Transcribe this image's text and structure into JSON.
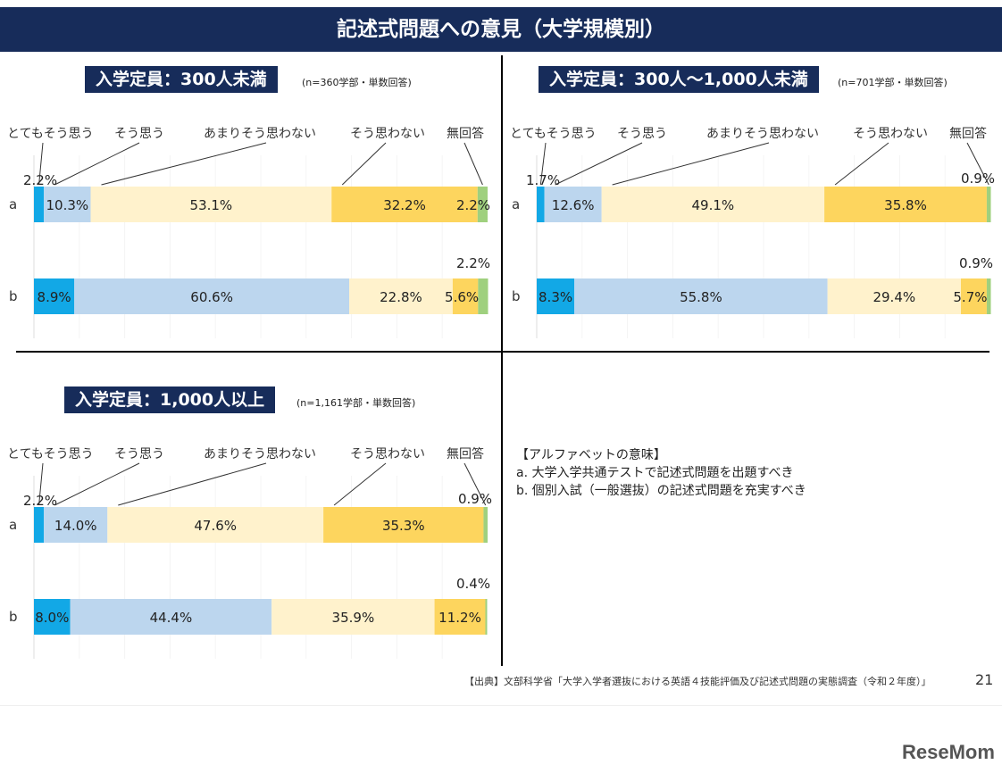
{
  "title": "記述式問題への意見（大学規模別）",
  "legend_colors": {
    "totemo": "#12a8e6",
    "sou": "#bcd6ee",
    "amari": "#fff2cc",
    "souomowanai": "#fdd55e",
    "muka": "#9fd07e"
  },
  "chart_data": [
    {
      "type": "bar",
      "title": "入学定員：300人未満",
      "note": "(n=360学部・単数回答)",
      "categories_header": [
        "とてもそう思う",
        "そう思う",
        "あまりそう思わない",
        "そう思わない",
        "無回答"
      ],
      "rows": [
        "a",
        "b"
      ],
      "series": [
        {
          "name": "とてもそう思う",
          "values": [
            2.2,
            8.9
          ]
        },
        {
          "name": "そう思う",
          "values": [
            10.3,
            60.6
          ]
        },
        {
          "name": "あまりそう思わない",
          "values": [
            53.1,
            22.8
          ]
        },
        {
          "name": "そう思わない",
          "values": [
            32.2,
            5.6
          ]
        },
        {
          "name": "無回答",
          "values": [
            2.2,
            2.2
          ]
        }
      ],
      "labels": [
        [
          "2.2%",
          "10.3%",
          "53.1%",
          "32.2%",
          "2.2%"
        ],
        [
          "8.9%",
          "60.6%",
          "22.8%",
          "5.6%",
          "2.2%"
        ]
      ]
    },
    {
      "type": "bar",
      "title": "入学定員：300人～1,000人未満",
      "note": "(n=701学部・単数回答)",
      "categories_header": [
        "とてもそう思う",
        "そう思う",
        "あまりそう思わない",
        "そう思わない",
        "無回答"
      ],
      "rows": [
        "a",
        "b"
      ],
      "series": [
        {
          "name": "とてもそう思う",
          "values": [
            1.7,
            8.3
          ]
        },
        {
          "name": "そう思う",
          "values": [
            12.6,
            55.8
          ]
        },
        {
          "name": "あまりそう思わない",
          "values": [
            49.1,
            29.4
          ]
        },
        {
          "name": "そう思わない",
          "values": [
            35.8,
            5.7
          ]
        },
        {
          "name": "無回答",
          "values": [
            0.9,
            0.9
          ]
        }
      ],
      "labels": [
        [
          "1.7%",
          "12.6%",
          "49.1%",
          "35.8%",
          "0.9%"
        ],
        [
          "8.3%",
          "55.8%",
          "29.4%",
          "5.7%",
          "0.9%"
        ]
      ]
    },
    {
      "type": "bar",
      "title": "入学定員：1,000人以上",
      "note": "(n=1,161学部・単数回答)",
      "categories_header": [
        "とてもそう思う",
        "そう思う",
        "あまりそう思わない",
        "そう思わない",
        "無回答"
      ],
      "rows": [
        "a",
        "b"
      ],
      "series": [
        {
          "name": "とてもそう思う",
          "values": [
            2.2,
            8.0
          ]
        },
        {
          "name": "そう思う",
          "values": [
            14.0,
            44.4
          ]
        },
        {
          "name": "あまりそう思わない",
          "values": [
            47.6,
            35.9
          ]
        },
        {
          "name": "そう思わない",
          "values": [
            35.3,
            11.2
          ]
        },
        {
          "name": "無回答",
          "values": [
            0.9,
            0.4
          ]
        }
      ],
      "labels": [
        [
          "2.2%",
          "14.0%",
          "47.6%",
          "35.3%",
          "0.9%"
        ],
        [
          "8.0%",
          "44.4%",
          "35.9%",
          "11.2%",
          "0.4%"
        ]
      ]
    }
  ],
  "legend_explain": {
    "heading": "【アルファベットの意味】",
    "a": "a. 大学入学共通テストで記述式問題を出題すべき",
    "b": "b. 個別入試（一般選抜）の記述式問題を充実すべき"
  },
  "footer": "【出典】文部科学省「大学入学者選抜における英語４技能評価及び記述式問題の実態調査（令和２年度）」",
  "page_number": "21",
  "brand": "ReseMom"
}
